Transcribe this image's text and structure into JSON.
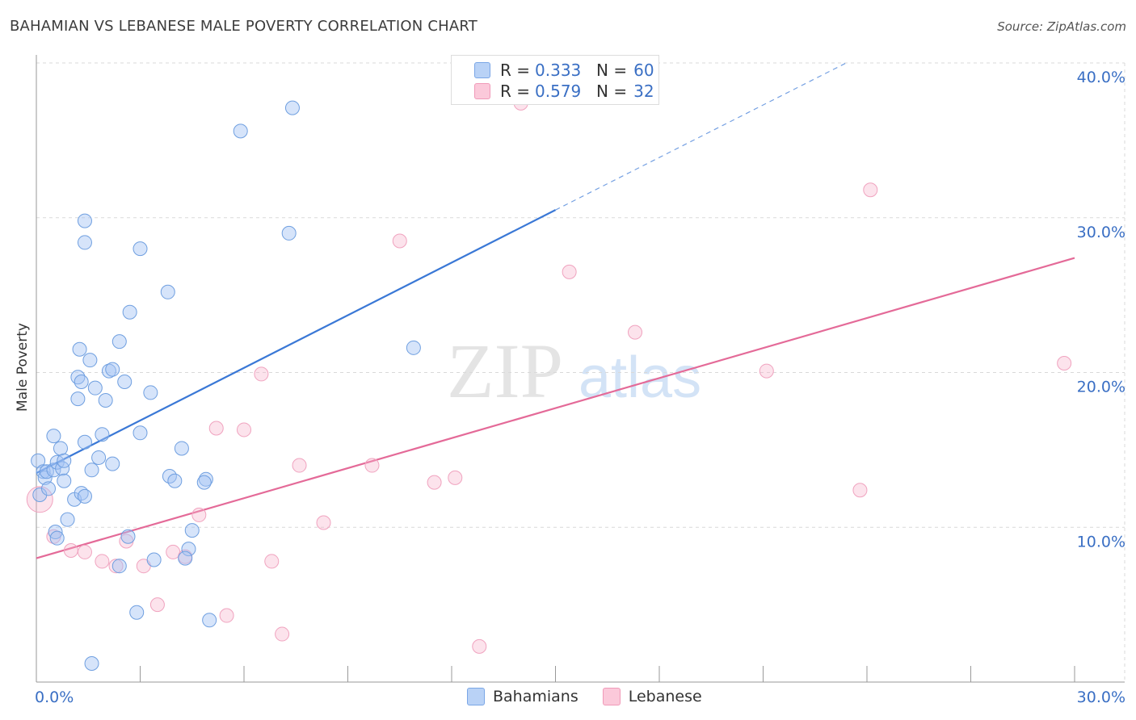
{
  "title": "BAHAMIAN VS LEBANESE MALE POVERTY CORRELATION CHART",
  "source": "Source: ZipAtlas.com",
  "watermark": {
    "zip": "ZIP",
    "atlas": "atlas"
  },
  "legend": {
    "r_label": "R =",
    "n_label": "N =",
    "rows": [
      {
        "r": "0.333",
        "n": "60",
        "color": "#b9d2f6"
      },
      {
        "r": "0.579",
        "n": "32",
        "color": "#fbc9da"
      }
    ]
  },
  "bottom_legend": {
    "blue": "Bahamians",
    "pink": "Lebanese"
  },
  "chart_data": {
    "type": "scatter",
    "title": "BAHAMIAN VS LEBANESE MALE POVERTY CORRELATION CHART",
    "xlabel": "",
    "ylabel": "Male Poverty",
    "xlim": [
      0,
      30
    ],
    "ylim": [
      0,
      40
    ],
    "x_tick_labels": [
      "0.0%",
      "30.0%"
    ],
    "y_tick_labels": [
      "10.0%",
      "20.0%",
      "30.0%",
      "40.0%"
    ],
    "y_ticks": [
      10,
      20,
      30,
      40
    ],
    "colors": {
      "blue": "#3a78d6",
      "pink": "#e46a98"
    },
    "series": [
      {
        "name": "Bahamians",
        "r": 0.333,
        "n": 60,
        "trend": {
          "x0": 0,
          "y0": 13.5,
          "x1": 15,
          "y1": 30.5,
          "dash_to_x": 23.4,
          "dash_to_y": 40.0
        },
        "points": [
          [
            0.05,
            14.3
          ],
          [
            0.2,
            13.6
          ],
          [
            0.25,
            13.2
          ],
          [
            0.1,
            12.1
          ],
          [
            0.35,
            12.5
          ],
          [
            0.3,
            13.6
          ],
          [
            0.5,
            15.9
          ],
          [
            0.5,
            13.7
          ],
          [
            0.6,
            14.2
          ],
          [
            0.75,
            13.8
          ],
          [
            0.7,
            15.1
          ],
          [
            0.8,
            13.0
          ],
          [
            0.8,
            14.3
          ],
          [
            0.9,
            10.5
          ],
          [
            0.55,
            9.7
          ],
          [
            0.6,
            9.3
          ],
          [
            1.1,
            11.8
          ],
          [
            1.3,
            12.2
          ],
          [
            1.4,
            12.0
          ],
          [
            1.2,
            18.3
          ],
          [
            1.2,
            19.7
          ],
          [
            1.3,
            19.4
          ],
          [
            1.25,
            21.5
          ],
          [
            1.55,
            20.8
          ],
          [
            1.4,
            15.5
          ],
          [
            1.6,
            13.7
          ],
          [
            1.7,
            19.0
          ],
          [
            1.8,
            14.5
          ],
          [
            1.9,
            16.0
          ],
          [
            2.0,
            18.2
          ],
          [
            2.1,
            20.1
          ],
          [
            2.2,
            20.2
          ],
          [
            2.2,
            14.1
          ],
          [
            2.4,
            22.0
          ],
          [
            2.55,
            19.4
          ],
          [
            2.7,
            23.9
          ],
          [
            3.0,
            28.0
          ],
          [
            3.0,
            16.1
          ],
          [
            3.3,
            18.7
          ],
          [
            3.8,
            25.2
          ],
          [
            3.85,
            13.3
          ],
          [
            4.2,
            15.1
          ],
          [
            4.5,
            9.8
          ],
          [
            4.4,
            8.6
          ],
          [
            4.3,
            8.0
          ],
          [
            4.0,
            13.0
          ],
          [
            4.9,
            13.1
          ],
          [
            4.85,
            12.9
          ],
          [
            2.65,
            9.4
          ],
          [
            2.4,
            7.5
          ],
          [
            3.4,
            7.9
          ],
          [
            2.9,
            4.5
          ],
          [
            5.0,
            4.0
          ],
          [
            1.6,
            1.2
          ],
          [
            1.4,
            28.4
          ],
          [
            1.4,
            29.8
          ],
          [
            7.3,
            29.0
          ],
          [
            7.4,
            37.1
          ],
          [
            5.9,
            35.6
          ],
          [
            10.9,
            21.6
          ]
        ]
      },
      {
        "name": "Lebanese",
        "r": 0.579,
        "n": 32,
        "trend": {
          "x0": 0,
          "y0": 8.0,
          "x1": 30,
          "y1": 27.4
        },
        "points": [
          [
            0.1,
            11.8
          ],
          [
            0.5,
            9.4
          ],
          [
            1.0,
            8.5
          ],
          [
            1.4,
            8.4
          ],
          [
            1.9,
            7.8
          ],
          [
            2.3,
            7.5
          ],
          [
            2.6,
            9.1
          ],
          [
            3.1,
            7.5
          ],
          [
            3.5,
            5.0
          ],
          [
            3.95,
            8.4
          ],
          [
            4.3,
            8.1
          ],
          [
            4.7,
            10.8
          ],
          [
            5.2,
            16.4
          ],
          [
            5.5,
            4.3
          ],
          [
            6.0,
            16.3
          ],
          [
            6.5,
            19.9
          ],
          [
            6.8,
            7.8
          ],
          [
            7.1,
            3.1
          ],
          [
            7.6,
            14.0
          ],
          [
            8.3,
            10.3
          ],
          [
            9.7,
            14.0
          ],
          [
            10.5,
            28.5
          ],
          [
            11.5,
            12.9
          ],
          [
            12.1,
            13.2
          ],
          [
            12.8,
            2.3
          ],
          [
            14.0,
            37.4
          ],
          [
            15.4,
            26.5
          ],
          [
            17.3,
            22.6
          ],
          [
            21.1,
            20.1
          ],
          [
            23.8,
            12.4
          ],
          [
            24.1,
            31.8
          ],
          [
            29.7,
            20.6
          ]
        ]
      }
    ]
  }
}
